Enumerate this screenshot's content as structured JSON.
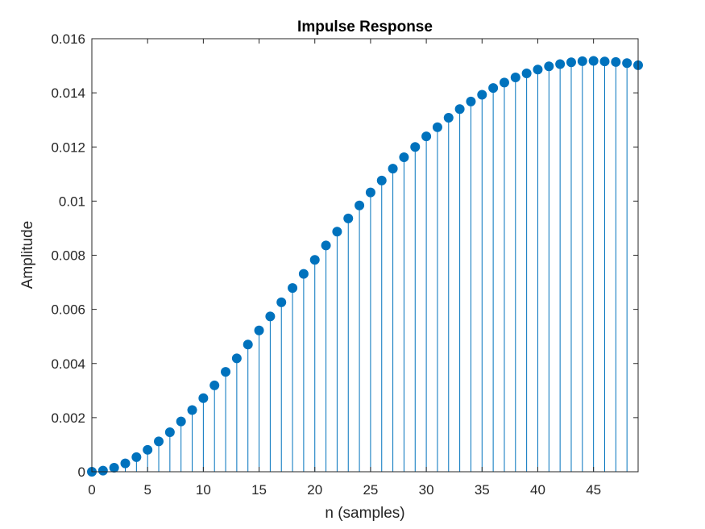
{
  "chart_data": {
    "type": "stem",
    "title": "Impulse Response",
    "xlabel": "n (samples)",
    "ylabel": "Amplitude",
    "xlim": [
      0,
      49
    ],
    "ylim": [
      0,
      0.016
    ],
    "x_ticks": [
      0,
      5,
      10,
      15,
      20,
      25,
      30,
      35,
      40,
      45
    ],
    "x_tick_labels": [
      "0",
      "5",
      "10",
      "15",
      "20",
      "25",
      "30",
      "35",
      "40",
      "45"
    ],
    "y_ticks": [
      0,
      0.002,
      0.004,
      0.006,
      0.008,
      0.01,
      0.012,
      0.014,
      0.016
    ],
    "y_tick_labels": [
      "0",
      "0.002",
      "0.004",
      "0.006",
      "0.008",
      "0.01",
      "0.012",
      "0.014",
      "0.016"
    ],
    "grid": false,
    "color": "#0072BD",
    "series": [
      {
        "x": [
          0,
          1,
          2,
          3,
          4,
          5,
          6,
          7,
          8,
          9,
          10,
          11,
          12,
          13,
          14,
          15,
          16,
          17,
          18,
          19,
          20,
          21,
          22,
          23,
          24,
          25,
          26,
          27,
          28,
          29,
          30,
          31,
          32,
          33,
          34,
          35,
          36,
          37,
          38,
          39,
          40,
          41,
          42,
          43,
          44,
          45,
          46,
          47,
          48,
          49
        ],
        "values": [
          0.0,
          4e-05,
          0.00015,
          0.00031,
          0.00054,
          0.00081,
          0.00112,
          0.00146,
          0.00186,
          0.00228,
          0.00272,
          0.00319,
          0.00369,
          0.00419,
          0.0047,
          0.00522,
          0.00574,
          0.00626,
          0.00679,
          0.00731,
          0.00783,
          0.00836,
          0.00887,
          0.00936,
          0.00984,
          0.01032,
          0.01076,
          0.0112,
          0.01162,
          0.012,
          0.01239,
          0.01273,
          0.01308,
          0.0134,
          0.01368,
          0.01393,
          0.01418,
          0.01438,
          0.01457,
          0.01472,
          0.01486,
          0.01498,
          0.01506,
          0.01513,
          0.01517,
          0.01518,
          0.01516,
          0.01514,
          0.0151,
          0.01502
        ]
      }
    ]
  }
}
